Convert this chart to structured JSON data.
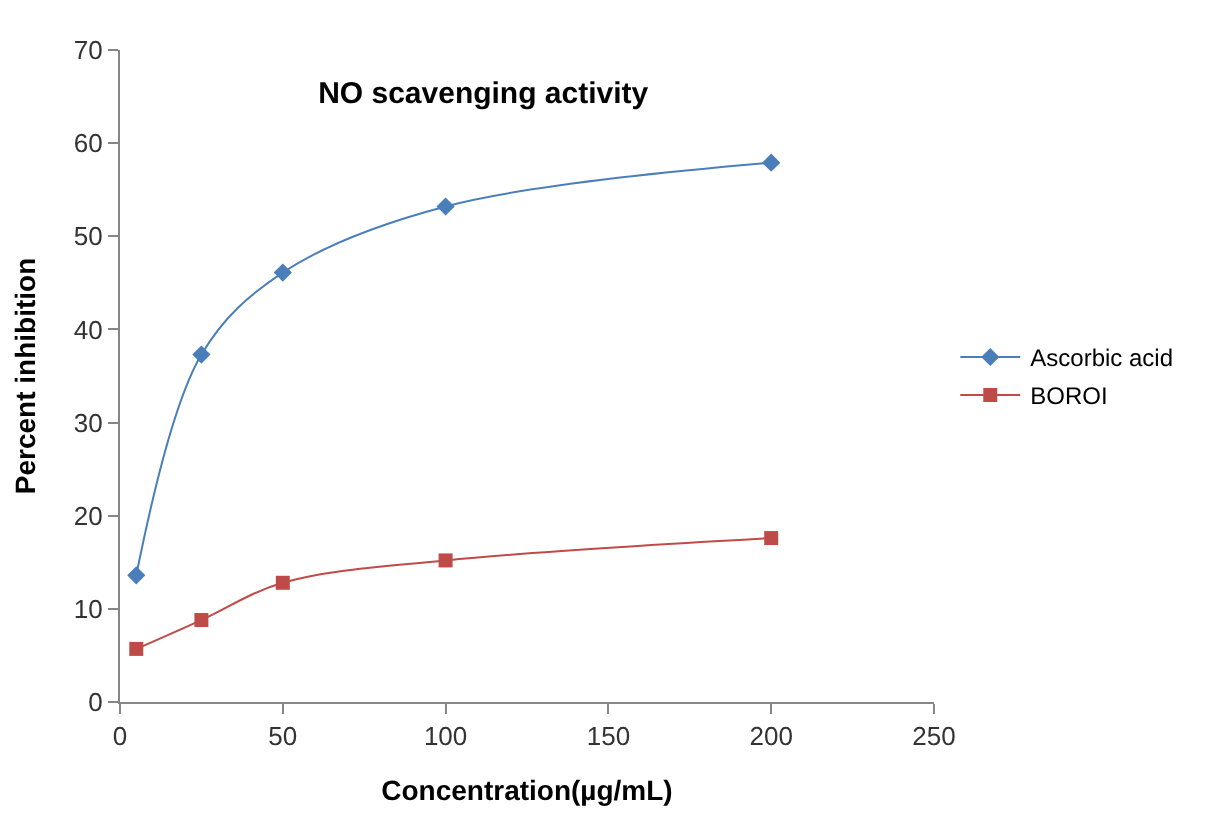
{
  "chart_data": {
    "type": "line",
    "title": "NO scavenging activity",
    "xlabel": "Concentration(µg/mL)",
    "ylabel": "Percent inhibition",
    "x": [
      5,
      25,
      50,
      100,
      200
    ],
    "series": [
      {
        "name": "Ascorbic acid",
        "color": "#4a7ebb",
        "marker": "diamond",
        "values": [
          13.6,
          37.3,
          46.1,
          53.2,
          57.9
        ]
      },
      {
        "name": "BOROI",
        "color": "#be4b48",
        "marker": "square",
        "values": [
          5.7,
          8.8,
          12.8,
          15.2,
          17.6
        ]
      }
    ],
    "xlim": [
      0,
      250
    ],
    "xticks": [
      0,
      50,
      100,
      150,
      200,
      250
    ],
    "ylim": [
      0,
      70
    ],
    "yticks": [
      0,
      10,
      20,
      30,
      40,
      50,
      60,
      70
    ],
    "legend": "right",
    "line_style": "solid"
  }
}
